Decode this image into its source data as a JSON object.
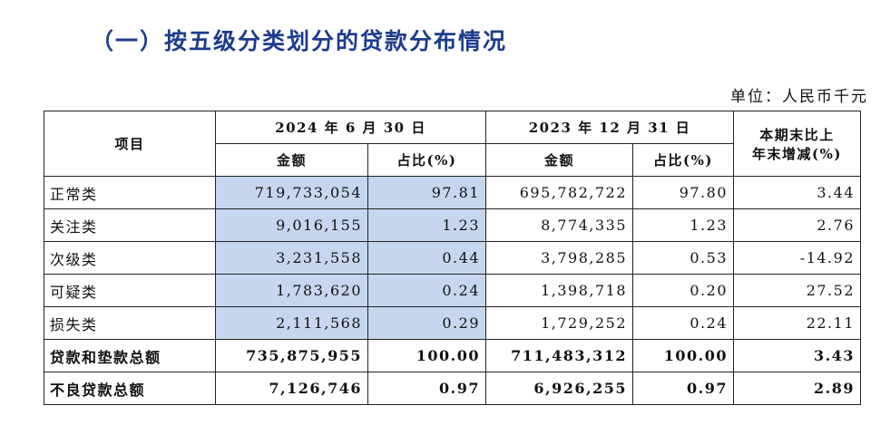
{
  "title": "（一）按五级分类划分的贷款分布情况",
  "unit": "单位：人民币千元",
  "table": {
    "header": {
      "item": "项目",
      "period1": "2024 年 6 月 30 日",
      "period2": "2023 年 12 月 31 日",
      "change": [
        "本期末比上",
        "年末增减(%)"
      ],
      "amount1": "金额",
      "share1": "占比(%)",
      "amount2": "金额",
      "share2": "占比(%)"
    },
    "rows": [
      [
        "正常类",
        "719,733,054",
        "97.81",
        "695,782,722",
        "97.80",
        "3.44"
      ],
      [
        "关注类",
        "9,016,155",
        "1.23",
        "8,774,335",
        "1.23",
        "2.76"
      ],
      [
        "次级类",
        "3,231,558",
        "0.44",
        "3,798,285",
        "0.53",
        "-14.92"
      ],
      [
        "可疑类",
        "1,783,620",
        "0.24",
        "1,398,718",
        "0.20",
        "27.52"
      ],
      [
        "损失类",
        "2,111,568",
        "0.29",
        "1,729,252",
        "0.24",
        "22.11"
      ],
      [
        "贷款和垫款总额",
        "735,875,955",
        "100.00",
        "711,483,312",
        "100.00",
        "3.43"
      ],
      [
        "不良贷款总额",
        "7,126,746",
        "0.97",
        "6,926,255",
        "0.97",
        "2.89"
      ]
    ]
  }
}
